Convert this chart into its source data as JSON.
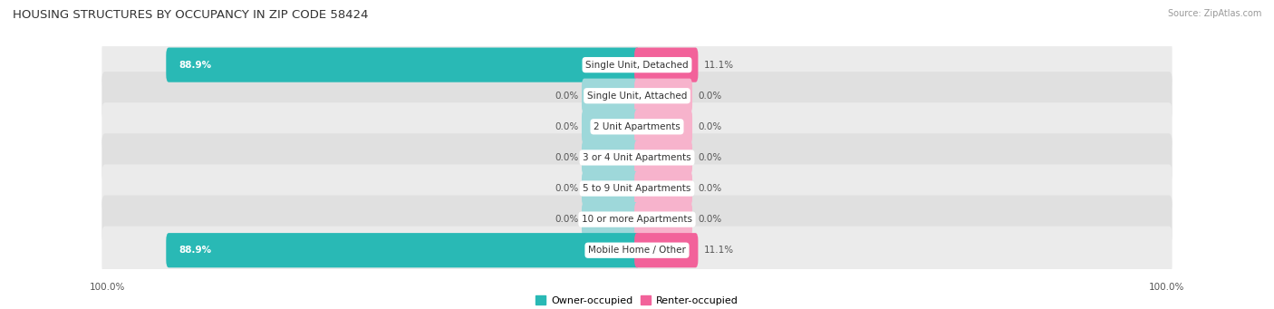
{
  "title": "HOUSING STRUCTURES BY OCCUPANCY IN ZIP CODE 58424",
  "source": "Source: ZipAtlas.com",
  "categories": [
    "Single Unit, Detached",
    "Single Unit, Attached",
    "2 Unit Apartments",
    "3 or 4 Unit Apartments",
    "5 to 9 Unit Apartments",
    "10 or more Apartments",
    "Mobile Home / Other"
  ],
  "owner_values": [
    88.9,
    0.0,
    0.0,
    0.0,
    0.0,
    0.0,
    88.9
  ],
  "renter_values": [
    11.1,
    0.0,
    0.0,
    0.0,
    0.0,
    0.0,
    11.1
  ],
  "owner_color": "#29B9B5",
  "renter_color": "#F2629A",
  "owner_color_zero": "#9ED8DA",
  "renter_color_zero": "#F7B3CC",
  "row_bg_even": "#EBEBEB",
  "row_bg_odd": "#E0E0E0",
  "figsize": [
    14.06,
    3.41
  ],
  "dpi": 100,
  "max_owner_pct": 100.0,
  "max_renter_pct": 100.0,
  "zero_stub_pct": 5.0
}
